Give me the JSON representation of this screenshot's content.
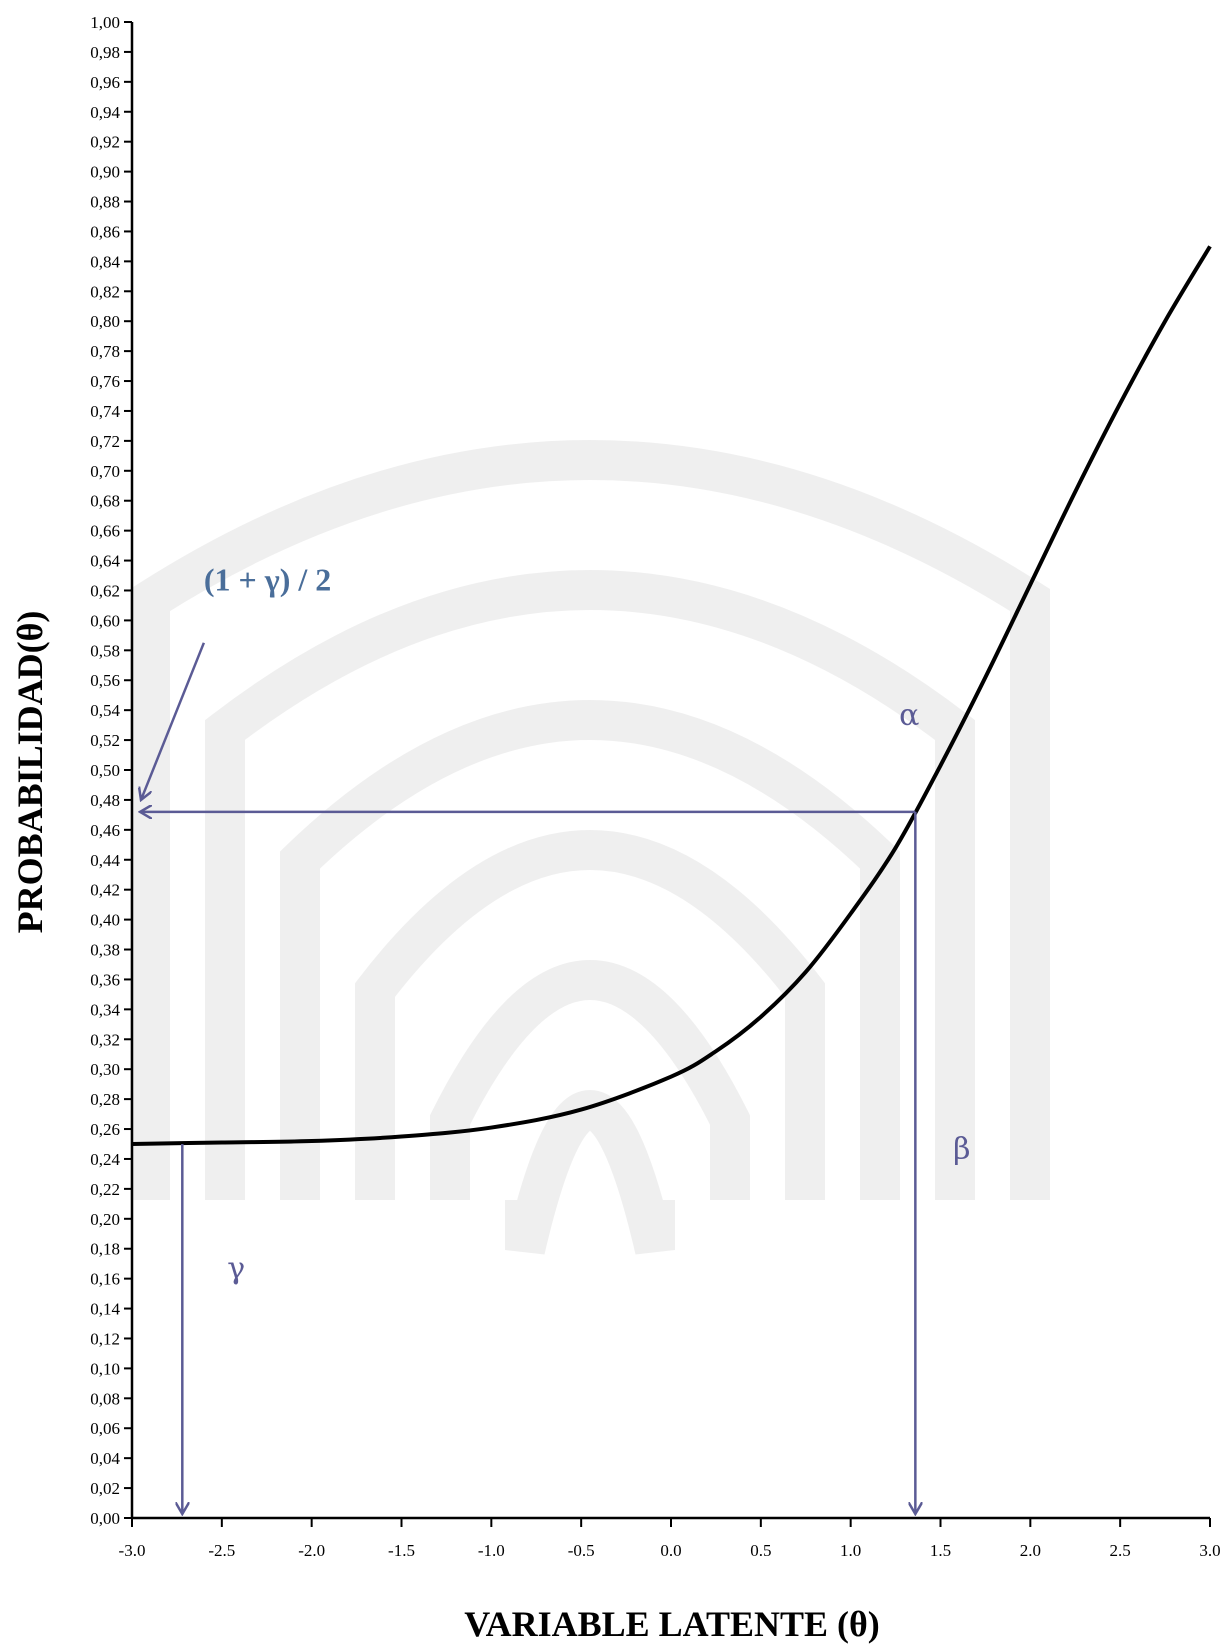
{
  "chart_data": {
    "type": "line",
    "xlabel": "VARIABLE LATENTE (θ)",
    "ylabel": "PROBABILIDAD(θ)",
    "xlim": [
      -3.0,
      3.0
    ],
    "ylim": [
      0.0,
      1.0
    ],
    "x_ticks": [
      "-3.0",
      "-2.5",
      "-2.0",
      "-1.5",
      "-1.0",
      "-0.5",
      "0.0",
      "0.5",
      "1.0",
      "1.5",
      "2.0",
      "2.5",
      "3.0"
    ],
    "y_ticks": [
      "0,00",
      "0,02",
      "0,04",
      "0,06",
      "0,08",
      "0,10",
      "0,12",
      "0,14",
      "0,16",
      "0,18",
      "0,20",
      "0,22",
      "0,24",
      "0,26",
      "0,28",
      "0,30",
      "0,32",
      "0,34",
      "0,36",
      "0,38",
      "0,40",
      "0,42",
      "0,44",
      "0,46",
      "0,48",
      "0,50",
      "0,52",
      "0,54",
      "0,56",
      "0,58",
      "0,60",
      "0,62",
      "0,64",
      "0,66",
      "0,68",
      "0,70",
      "0,72",
      "0,74",
      "0,76",
      "0,78",
      "0,80",
      "0,82",
      "0,84",
      "0,86",
      "0,88",
      "0,90",
      "0,92",
      "0,94",
      "0,96",
      "0,98",
      "1,00"
    ],
    "grid": false,
    "series": [
      {
        "x": [
          -3.0,
          -2.5,
          -2.0,
          -1.5,
          -1.0,
          -0.5,
          0.0,
          0.25,
          0.5,
          0.75,
          1.0,
          1.25,
          1.5,
          1.75,
          2.0,
          2.25,
          2.5,
          2.75,
          3.0
        ],
        "values": [
          0.25,
          0.251,
          0.252,
          0.255,
          0.261,
          0.273,
          0.295,
          0.312,
          0.335,
          0.365,
          0.404,
          0.448,
          0.503,
          0.562,
          0.624,
          0.686,
          0.745,
          0.8,
          0.85
        ],
        "color": "#000000"
      }
    ],
    "annotations": {
      "gamma_label": "γ",
      "alpha_label": "α",
      "beta_label": "β",
      "half_label": "(1 + γ) / 2",
      "gamma_x": -2.72,
      "gamma_y": 0.25,
      "beta_x": 1.36,
      "half_y": 0.472,
      "pointer_from": [
        -2.6,
        0.585
      ],
      "pointer_to": [
        -2.95,
        0.48
      ],
      "alpha_pos": [
        1.27,
        0.53
      ],
      "beta_pos": [
        1.57,
        0.24
      ],
      "gamma_pos": [
        -2.47,
        0.16
      ],
      "half_pos": [
        -2.6,
        0.62
      ],
      "color": "#5b5b95",
      "half_color": "#4a6e9a"
    }
  }
}
